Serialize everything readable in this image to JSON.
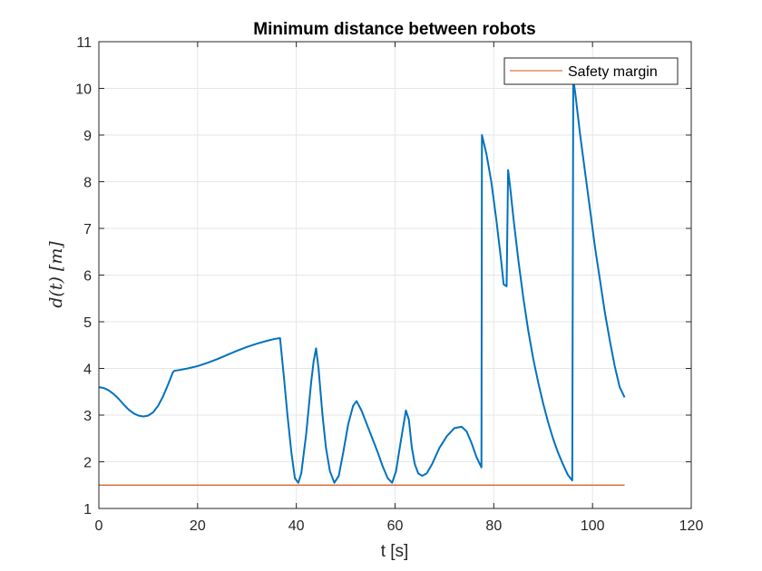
{
  "chart_data": {
    "type": "line",
    "title": "Minimum distance between robots",
    "xlabel": "t [s]",
    "ylabel": "d(t) [m]",
    "xlim": [
      0,
      120
    ],
    "ylim": [
      1,
      11
    ],
    "xticks": [
      "0",
      "20",
      "40",
      "60",
      "80",
      "100",
      "120"
    ],
    "yticks": [
      "1",
      "2",
      "3",
      "4",
      "5",
      "6",
      "7",
      "8",
      "9",
      "10",
      "11"
    ],
    "grid": true,
    "legend_position": "top-right",
    "colors": {
      "distance": "#0072BD",
      "safety": "#D95319",
      "axis": "#262626",
      "grid": "#e6e6e6"
    },
    "series": [
      {
        "key": "distance",
        "x": [
          0,
          1,
          2,
          3,
          4,
          5,
          6,
          7,
          8,
          9,
          10,
          11,
          12,
          13,
          14,
          15,
          15.3,
          16,
          18,
          20,
          22,
          24,
          26,
          28,
          30,
          32,
          34,
          35.5,
          36.7,
          37.5,
          38.2,
          39,
          39.7,
          40.4,
          41,
          42,
          43,
          43.5,
          44,
          44.5,
          45.3,
          46,
          46.8,
          47.7,
          48.6,
          49.5,
          50.5,
          51.5,
          52.2,
          53.2,
          54.3,
          55.4,
          56.5,
          57.5,
          58.5,
          59.4,
          60.2,
          61.1,
          62.2,
          62.8,
          63.4,
          64,
          64.7,
          65.5,
          66.4,
          67.5,
          69,
          70.5,
          72,
          73.5,
          74.5,
          75.5,
          76.5,
          77.5,
          77.6,
          78.5,
          79.5,
          80.5,
          81.5,
          82,
          82.6,
          82.9,
          83.3,
          84,
          85,
          86,
          87,
          88,
          89,
          90,
          91,
          92,
          93,
          94,
          95,
          95.9,
          96.1,
          96.5,
          97.5,
          98.5,
          99.5,
          100.5,
          101.5,
          102.5,
          103.5,
          104.5,
          105.5,
          106.5
        ],
        "y": [
          3.6,
          3.58,
          3.53,
          3.45,
          3.35,
          3.23,
          3.12,
          3.04,
          2.99,
          2.97,
          2.99,
          3.06,
          3.2,
          3.4,
          3.65,
          3.92,
          3.95,
          3.96,
          4.0,
          4.05,
          4.12,
          4.2,
          4.29,
          4.38,
          4.46,
          4.53,
          4.59,
          4.63,
          4.65,
          3.8,
          3.0,
          2.2,
          1.65,
          1.55,
          1.75,
          2.6,
          3.7,
          4.15,
          4.43,
          4.0,
          3.0,
          2.3,
          1.8,
          1.55,
          1.7,
          2.2,
          2.8,
          3.2,
          3.3,
          3.1,
          2.8,
          2.5,
          2.2,
          1.9,
          1.65,
          1.55,
          1.8,
          2.4,
          3.1,
          2.9,
          2.3,
          1.95,
          1.75,
          1.7,
          1.75,
          1.95,
          2.3,
          2.55,
          2.72,
          2.75,
          2.65,
          2.4,
          2.1,
          1.88,
          9.0,
          8.6,
          8.0,
          7.2,
          6.3,
          5.8,
          5.76,
          8.25,
          7.9,
          7.2,
          6.3,
          5.5,
          4.8,
          4.2,
          3.7,
          3.25,
          2.85,
          2.5,
          2.2,
          1.95,
          1.72,
          1.6,
          10.2,
          9.9,
          9.0,
          8.2,
          7.4,
          6.6,
          5.9,
          5.2,
          4.6,
          4.05,
          3.6,
          3.38
        ]
      },
      {
        "key": "safety",
        "name": "Safety margin",
        "x": [
          0,
          106.5
        ],
        "y": [
          1.5,
          1.5
        ]
      }
    ]
  }
}
